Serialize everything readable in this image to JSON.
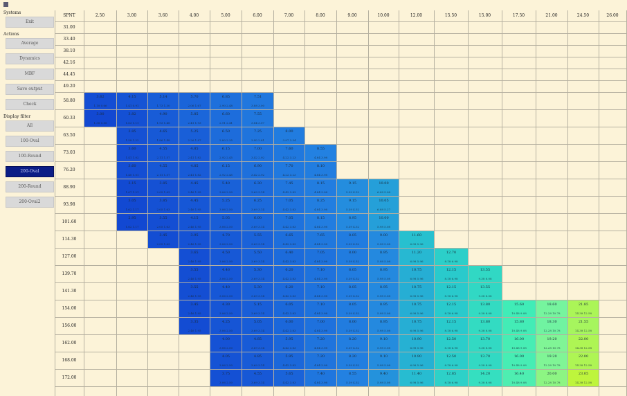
{
  "topbar": {
    "icon": "menu-icon"
  },
  "sidebar": {
    "sections": [
      {
        "label": "Systems",
        "buttons": [
          "Exit"
        ]
      },
      {
        "label": "Actions",
        "buttons": [
          "Average",
          "Dynamics",
          "MBF",
          "Save output",
          "Check"
        ]
      },
      {
        "label": "Display filter",
        "buttons": [
          "All",
          "100-Oval",
          "100-Round",
          "200-Oval",
          "200-Round",
          "200-Oval2"
        ]
      }
    ],
    "active_button": "200-Oval"
  },
  "table": {
    "corner_label": "SPNT",
    "columns": [
      "2.50",
      "3.00",
      "3.60",
      "4.00",
      "5.00",
      "6.00",
      "7.00",
      "8.00",
      "9.00",
      "10.00",
      "12.00",
      "15.50",
      "15.00",
      "17.50",
      "21.00",
      "24.50",
      "26.00"
    ],
    "rows": [
      "31.00",
      "33.40",
      "38.10",
      "42.16",
      "44.45",
      "49.20",
      "58.80",
      "60.33",
      "63.50",
      "73.03",
      "76.20",
      "88.90",
      "93.98",
      "101.60",
      "114.30",
      "127.00",
      "139.70",
      "141.30",
      "154.00",
      "156.00",
      "162.00",
      "168.00",
      "172.00"
    ],
    "cells": [
      {
        "r": 6,
        "c": 0,
        "v": "3.62",
        "s": "1.18  0.66"
      },
      {
        "r": 6,
        "c": 1,
        "v": "4.15",
        "s": "1.41  0.91"
      },
      {
        "r": 6,
        "c": 2,
        "v": "5.14",
        "s": "1.73  1.30"
      },
      {
        "r": 6,
        "c": 3,
        "v": "5.70",
        "s": "2.06  1.67"
      },
      {
        "r": 6,
        "c": 4,
        "v": "6.85",
        "s": "2.90  2.48"
      },
      {
        "r": 6,
        "c": 5,
        "v": "7.51",
        "s": "3.88  3.00"
      },
      {
        "r": 7,
        "c": 0,
        "v": "3.00",
        "s": "1.38  0.88"
      },
      {
        "r": 7,
        "c": 1,
        "v": "3.82",
        "s": "1.63  1.11"
      },
      {
        "r": 7,
        "c": 2,
        "v": "4.90",
        "s": "1.93  1.48"
      },
      {
        "r": 7,
        "c": 3,
        "v": "5.85",
        "s": "2.41  1.93"
      },
      {
        "r": 7,
        "c": 4,
        "v": "6.60",
        "s": "2.91  2.41"
      },
      {
        "r": 7,
        "c": 5,
        "v": "7.55",
        "s": "3.84  3.07"
      },
      {
        "r": 8,
        "c": 1,
        "v": "3.85",
        "s": "1.58  1.22"
      },
      {
        "r": 8,
        "c": 2,
        "v": "4.65",
        "s": "1.86  1.48"
      },
      {
        "r": 8,
        "c": 3,
        "v": "5.25",
        "s": "2.26  1.87"
      },
      {
        "r": 8,
        "c": 4,
        "v": "6.50",
        "s": "2.80  2.35"
      },
      {
        "r": 8,
        "c": 5,
        "v": "7.25",
        "s": "3.40  2.81"
      },
      {
        "r": 8,
        "c": 6,
        "v": "8.00",
        "s": "3.97  3.34"
      },
      {
        "r": 9,
        "c": 1,
        "v": "3.60",
        "s": "1.41  1.02"
      },
      {
        "r": 9,
        "c": 2,
        "v": "4.55",
        "s": "2.11  1.57"
      },
      {
        "r": 9,
        "c": 3,
        "v": "4.85",
        "s": "2.41  1.82"
      },
      {
        "r": 9,
        "c": 4,
        "v": "6.15",
        "s": "2.92  2.45"
      },
      {
        "r": 9,
        "c": 5,
        "v": "7.00",
        "s": "3.42  2.92"
      },
      {
        "r": 9,
        "c": 6,
        "v": "7.60",
        "s": "4.22  3.23"
      },
      {
        "r": 9,
        "c": 7,
        "v": "8.55",
        "s": "4.84  3.98"
      },
      {
        "r": 10,
        "c": 1,
        "v": "3.60",
        "s": "1.40  1.01"
      },
      {
        "r": 10,
        "c": 2,
        "v": "4.55",
        "s": "2.11  1.57"
      },
      {
        "r": 10,
        "c": 3,
        "v": "4.85",
        "s": "2.41  1.82"
      },
      {
        "r": 10,
        "c": 4,
        "v": "6.15",
        "s": "2.92  2.45"
      },
      {
        "r": 10,
        "c": 5,
        "v": "6.90",
        "s": "3.42  2.92"
      },
      {
        "r": 10,
        "c": 6,
        "v": "7.70",
        "s": "4.22  3.23"
      },
      {
        "r": 10,
        "c": 7,
        "v": "8.10",
        "s": "4.84  3.98"
      },
      {
        "r": 11,
        "c": 1,
        "v": "3.15",
        "s": "1.67  1.21"
      },
      {
        "r": 11,
        "c": 2,
        "v": "3.85",
        "s": "2.05  1.63"
      },
      {
        "r": 11,
        "c": 3,
        "v": "4.45",
        "s": "2.46  1.95"
      },
      {
        "r": 11,
        "c": 4,
        "v": "5.40",
        "s": "3.06  2.50"
      },
      {
        "r": 11,
        "c": 5,
        "v": "6.30",
        "s": "3.69  3.14"
      },
      {
        "r": 11,
        "c": 6,
        "v": "7.45",
        "s": "4.42  3.83"
      },
      {
        "r": 11,
        "c": 7,
        "v": "8.15",
        "s": "4.84  3.98"
      },
      {
        "r": 11,
        "c": 8,
        "v": "9.15",
        "s": "5.39  4.52"
      },
      {
        "r": 11,
        "c": 9,
        "v": "10.00",
        "s": "6.08  5.08"
      },
      {
        "r": 12,
        "c": 1,
        "v": "3.05",
        "s": "1.62  1.17"
      },
      {
        "r": 12,
        "c": 2,
        "v": "3.85",
        "s": "2.05  1.63"
      },
      {
        "r": 12,
        "c": 3,
        "v": "4.45",
        "s": "2.46  1.95"
      },
      {
        "r": 12,
        "c": 4,
        "v": "5.25",
        "s": "3.06  2.50"
      },
      {
        "r": 12,
        "c": 5,
        "v": "6.25",
        "s": "3.69  3.14"
      },
      {
        "r": 12,
        "c": 6,
        "v": "7.05",
        "s": "4.42  3.83"
      },
      {
        "r": 12,
        "c": 7,
        "v": "8.25",
        "s": "4.84  3.98"
      },
      {
        "r": 12,
        "c": 8,
        "v": "9.15",
        "s": "5.39  4.52"
      },
      {
        "r": 12,
        "c": 9,
        "v": "10.05",
        "s": "6.08  5.27"
      },
      {
        "r": 13,
        "c": 1,
        "v": "2.95",
        "s": "1.62  1.17"
      },
      {
        "r": 13,
        "c": 2,
        "v": "3.55",
        "s": "2.05  1.63"
      },
      {
        "r": 13,
        "c": 3,
        "v": "4.15",
        "s": "2.46  1.95"
      },
      {
        "r": 13,
        "c": 4,
        "v": "5.05",
        "s": "3.06  2.50"
      },
      {
        "r": 13,
        "c": 5,
        "v": "6.00",
        "s": "3.69  3.14"
      },
      {
        "r": 13,
        "c": 6,
        "v": "7.05",
        "s": "4.42  3.83"
      },
      {
        "r": 13,
        "c": 7,
        "v": "8.15",
        "s": "4.84  3.98"
      },
      {
        "r": 13,
        "c": 8,
        "v": "8.95",
        "s": "5.39  4.52"
      },
      {
        "r": 13,
        "c": 9,
        "v": "10.00",
        "s": "5.98  5.08"
      },
      {
        "r": 14,
        "c": 2,
        "v": "3.45",
        "s": "2.05  1.63"
      },
      {
        "r": 14,
        "c": 3,
        "v": "3.95",
        "s": "2.46  1.95"
      },
      {
        "r": 14,
        "c": 4,
        "v": "4.70",
        "s": "3.06  2.50"
      },
      {
        "r": 14,
        "c": 5,
        "v": "5.55",
        "s": "3.69  3.14"
      },
      {
        "r": 14,
        "c": 6,
        "v": "6.65",
        "s": "4.42  3.83"
      },
      {
        "r": 14,
        "c": 7,
        "v": "7.65",
        "s": "4.84  3.98"
      },
      {
        "r": 14,
        "c": 8,
        "v": "8.05",
        "s": "5.39  4.52"
      },
      {
        "r": 14,
        "c": 9,
        "v": "9.00",
        "s": "5.98  5.08"
      },
      {
        "r": 14,
        "c": 10,
        "v": "11.60",
        "s": "6.98  5.96"
      },
      {
        "r": 15,
        "c": 3,
        "v": "3.65",
        "s": "2.46  1.95"
      },
      {
        "r": 15,
        "c": 4,
        "v": "4.50",
        "s": "3.06  2.50"
      },
      {
        "r": 15,
        "c": 5,
        "v": "5.50",
        "s": "3.69  3.14"
      },
      {
        "r": 15,
        "c": 6,
        "v": "6.40",
        "s": "4.42  3.83"
      },
      {
        "r": 15,
        "c": 7,
        "v": "7.05",
        "s": "4.84  3.98"
      },
      {
        "r": 15,
        "c": 8,
        "v": "8.00",
        "s": "5.39  4.52"
      },
      {
        "r": 15,
        "c": 9,
        "v": "8.95",
        "s": "5.98  5.08"
      },
      {
        "r": 15,
        "c": 10,
        "v": "11.20",
        "s": "6.98  5.96"
      },
      {
        "r": 15,
        "c": 11,
        "v": "12.70",
        "s": "8.18  6.98"
      },
      {
        "r": 16,
        "c": 3,
        "v": "3.55",
        "s": "2.46  1.95"
      },
      {
        "r": 16,
        "c": 4,
        "v": "4.40",
        "s": "3.06  2.50"
      },
      {
        "r": 16,
        "c": 5,
        "v": "5.30",
        "s": "3.69  3.14"
      },
      {
        "r": 16,
        "c": 6,
        "v": "6.20",
        "s": "4.42  3.83"
      },
      {
        "r": 16,
        "c": 7,
        "v": "7.10",
        "s": "4.84  3.98"
      },
      {
        "r": 16,
        "c": 8,
        "v": "8.05",
        "s": "5.39  4.52"
      },
      {
        "r": 16,
        "c": 9,
        "v": "8.95",
        "s": "5.98  5.08"
      },
      {
        "r": 16,
        "c": 10,
        "v": "10.75",
        "s": "6.98  5.96"
      },
      {
        "r": 16,
        "c": 11,
        "v": "12.15",
        "s": "8.18  6.98"
      },
      {
        "r": 16,
        "c": 12,
        "v": "13.55",
        "s": "9.38  8.08"
      },
      {
        "r": 17,
        "c": 3,
        "v": "3.55",
        "s": "2.46  1.95"
      },
      {
        "r": 17,
        "c": 4,
        "v": "4.40",
        "s": "3.06  2.50"
      },
      {
        "r": 17,
        "c": 5,
        "v": "5.30",
        "s": "3.69  3.14"
      },
      {
        "r": 17,
        "c": 6,
        "v": "6.20",
        "s": "4.42  3.83"
      },
      {
        "r": 17,
        "c": 7,
        "v": "7.10",
        "s": "4.84  3.98"
      },
      {
        "r": 17,
        "c": 8,
        "v": "8.05",
        "s": "5.39  4.52"
      },
      {
        "r": 17,
        "c": 9,
        "v": "8.95",
        "s": "5.98  5.08"
      },
      {
        "r": 17,
        "c": 10,
        "v": "10.75",
        "s": "6.98  5.96"
      },
      {
        "r": 17,
        "c": 11,
        "v": "12.15",
        "s": "8.18  6.98"
      },
      {
        "r": 17,
        "c": 12,
        "v": "13.55",
        "s": "9.38  8.08"
      },
      {
        "r": 18,
        "c": 3,
        "v": "3.45",
        "s": "2.46  1.95"
      },
      {
        "r": 18,
        "c": 4,
        "v": "4.30",
        "s": "3.06  2.50"
      },
      {
        "r": 18,
        "c": 5,
        "v": "5.15",
        "s": "3.69  3.14"
      },
      {
        "r": 18,
        "c": 6,
        "v": "6.05",
        "s": "4.42  3.83"
      },
      {
        "r": 18,
        "c": 7,
        "v": "7.10",
        "s": "4.84  3.98"
      },
      {
        "r": 18,
        "c": 8,
        "v": "8.05",
        "s": "5.39  4.52"
      },
      {
        "r": 18,
        "c": 9,
        "v": "8.95",
        "s": "5.98  5.08"
      },
      {
        "r": 18,
        "c": 10,
        "v": "10.75",
        "s": "6.98  5.96"
      },
      {
        "r": 18,
        "c": 11,
        "v": "12.15",
        "s": "8.18  6.98"
      },
      {
        "r": 18,
        "c": 12,
        "v": "13.80",
        "s": "9.38  8.08"
      },
      {
        "r": 18,
        "c": 13,
        "v": "15.60",
        "s": "10.48 9.08"
      },
      {
        "r": 18,
        "c": 14,
        "v": "18.60",
        "s": "12.28 10.78"
      },
      {
        "r": 18,
        "c": 15,
        "v": "21.85",
        "s": "14.38 12.58"
      },
      {
        "r": 19,
        "c": 3,
        "v": "3.35",
        "s": "2.46  1.95"
      },
      {
        "r": 19,
        "c": 4,
        "v": "4.25",
        "s": "3.06  2.50"
      },
      {
        "r": 19,
        "c": 5,
        "v": "5.05",
        "s": "3.69  3.14"
      },
      {
        "r": 19,
        "c": 6,
        "v": "6.00",
        "s": "4.42  3.83"
      },
      {
        "r": 19,
        "c": 7,
        "v": "7.00",
        "s": "4.84  3.98"
      },
      {
        "r": 19,
        "c": 8,
        "v": "8.00",
        "s": "5.39  4.52"
      },
      {
        "r": 19,
        "c": 9,
        "v": "8.95",
        "s": "5.98  5.08"
      },
      {
        "r": 19,
        "c": 10,
        "v": "10.75",
        "s": "6.98  5.96"
      },
      {
        "r": 19,
        "c": 11,
        "v": "12.15",
        "s": "8.18  6.98"
      },
      {
        "r": 19,
        "c": 12,
        "v": "13.80",
        "s": "9.38  8.08"
      },
      {
        "r": 19,
        "c": 13,
        "v": "15.80",
        "s": "10.48 9.08"
      },
      {
        "r": 19,
        "c": 14,
        "v": "18.30",
        "s": "12.28 10.78"
      },
      {
        "r": 19,
        "c": 15,
        "v": "21.55",
        "s": "14.38 12.58"
      },
      {
        "r": 20,
        "c": 4,
        "v": "4.00",
        "s": "3.06  2.50"
      },
      {
        "r": 20,
        "c": 5,
        "v": "4.85",
        "s": "3.69  3.14"
      },
      {
        "r": 20,
        "c": 6,
        "v": "5.95",
        "s": "4.42  3.83"
      },
      {
        "r": 20,
        "c": 7,
        "v": "7.20",
        "s": "4.84  3.98"
      },
      {
        "r": 20,
        "c": 8,
        "v": "8.20",
        "s": "5.39  4.52"
      },
      {
        "r": 20,
        "c": 9,
        "v": "9.10",
        "s": "5.98  5.08"
      },
      {
        "r": 20,
        "c": 10,
        "v": "10.90",
        "s": "6.98  5.96"
      },
      {
        "r": 20,
        "c": 11,
        "v": "12.50",
        "s": "8.18  6.98"
      },
      {
        "r": 20,
        "c": 12,
        "v": "13.70",
        "s": "9.38  8.08"
      },
      {
        "r": 20,
        "c": 13,
        "v": "16.00",
        "s": "10.48 9.08"
      },
      {
        "r": 20,
        "c": 14,
        "v": "19.20",
        "s": "12.28 10.78"
      },
      {
        "r": 20,
        "c": 15,
        "v": "22.00",
        "s": "14.38 12.58"
      },
      {
        "r": 21,
        "c": 4,
        "v": "4.05",
        "s": "3.06  2.50"
      },
      {
        "r": 21,
        "c": 5,
        "v": "4.85",
        "s": "3.69  3.14"
      },
      {
        "r": 21,
        "c": 6,
        "v": "5.95",
        "s": "4.42  3.83"
      },
      {
        "r": 21,
        "c": 7,
        "v": "7.20",
        "s": "4.84  3.98"
      },
      {
        "r": 21,
        "c": 8,
        "v": "8.20",
        "s": "5.39  4.52"
      },
      {
        "r": 21,
        "c": 9,
        "v": "9.10",
        "s": "5.98  5.08"
      },
      {
        "r": 21,
        "c": 10,
        "v": "10.90",
        "s": "6.98  5.96"
      },
      {
        "r": 21,
        "c": 11,
        "v": "12.50",
        "s": "8.18  6.98"
      },
      {
        "r": 21,
        "c": 12,
        "v": "13.70",
        "s": "9.38  8.08"
      },
      {
        "r": 21,
        "c": 13,
        "v": "16.00",
        "s": "10.48 9.08"
      },
      {
        "r": 21,
        "c": 14,
        "v": "19.20",
        "s": "12.28 10.78"
      },
      {
        "r": 21,
        "c": 15,
        "v": "22.00",
        "s": "14.38 12.58"
      },
      {
        "r": 22,
        "c": 4,
        "v": "3.75",
        "s": "3.06  2.50"
      },
      {
        "r": 22,
        "c": 5,
        "v": "4.55",
        "s": "3.69  3.14"
      },
      {
        "r": 22,
        "c": 6,
        "v": "5.65",
        "s": "4.42  3.83"
      },
      {
        "r": 22,
        "c": 7,
        "v": "7.40",
        "s": "4.84  3.98"
      },
      {
        "r": 22,
        "c": 8,
        "v": "8.55",
        "s": "5.39  4.52"
      },
      {
        "r": 22,
        "c": 9,
        "v": "9.40",
        "s": "5.98  5.08"
      },
      {
        "r": 22,
        "c": 10,
        "v": "11.40",
        "s": "6.98  5.96"
      },
      {
        "r": 22,
        "c": 11,
        "v": "12.85",
        "s": "8.18  6.98"
      },
      {
        "r": 22,
        "c": 12,
        "v": "14.20",
        "s": "9.38  8.08"
      },
      {
        "r": 22,
        "c": 13,
        "v": "16.40",
        "s": "10.48 9.08"
      },
      {
        "r": 22,
        "c": 14,
        "v": "20.00",
        "s": "12.28 10.78"
      },
      {
        "r": 22,
        "c": 15,
        "v": "23.05",
        "s": "14.38 12.58"
      }
    ]
  }
}
